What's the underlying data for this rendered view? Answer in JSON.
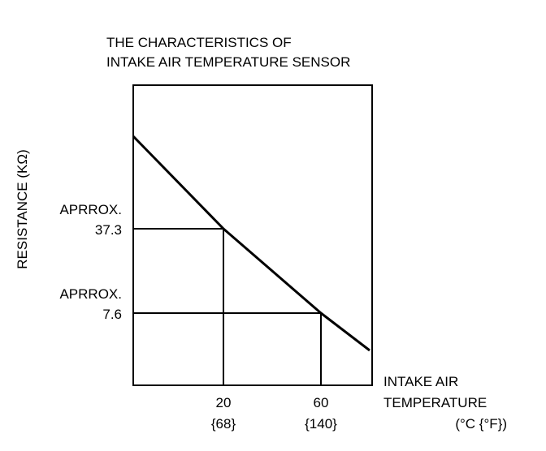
{
  "chart_data": {
    "type": "line",
    "title_lines": [
      "THE CHARACTERISTICS OF",
      "INTAKE AIR TEMPERATURE SENSOR"
    ],
    "xlabel_lines": [
      "INTAKE AIR",
      "TEMPERATURE",
      "(°C {°F})"
    ],
    "ylabel": "RESISTANCE (KΩ)",
    "x_ticks": [
      {
        "value": 20,
        "label": "20",
        "sublabel": "{68}"
      },
      {
        "value": 60,
        "label": "60",
        "sublabel": "{140}"
      }
    ],
    "annotations": [
      {
        "x": 20,
        "y": 37.3,
        "label_lines": [
          "APRROX.",
          "37.3"
        ]
      },
      {
        "x": 60,
        "y": 7.6,
        "label_lines": [
          "APRROX.",
          "7.6"
        ]
      }
    ],
    "series": [
      {
        "x": [
          -17,
          20,
          60,
          80
        ],
        "y": [
          90,
          37.3,
          7.6,
          -15
        ]
      }
    ],
    "xlim": [
      -17,
      81
    ],
    "grid": false,
    "legend": "none"
  }
}
